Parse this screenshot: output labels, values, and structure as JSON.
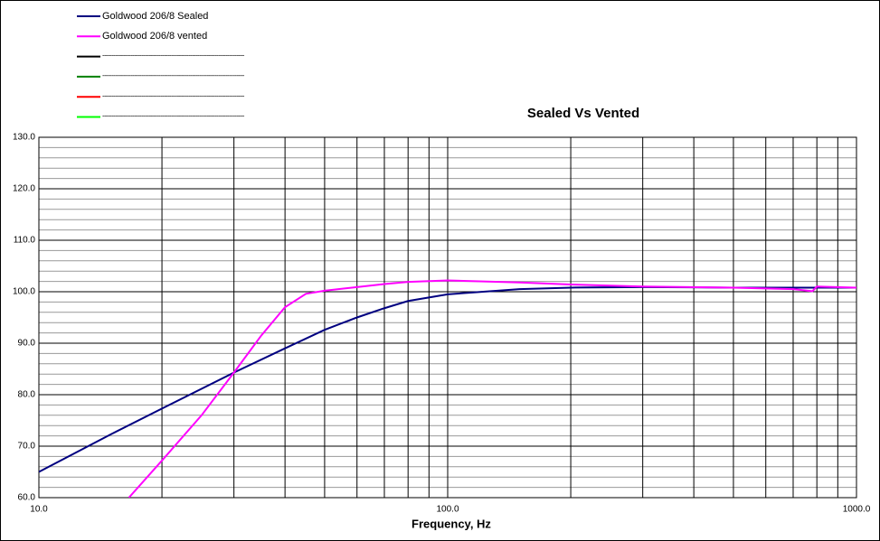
{
  "chart_data": {
    "type": "line",
    "title": "Sealed Vs Vented",
    "x_label": "Frequency, Hz",
    "x_scale": "log",
    "xlim": [
      10,
      1000
    ],
    "xticks": [
      {
        "value": 10,
        "label": "10.0"
      },
      {
        "value": 100,
        "label": "100.0"
      },
      {
        "value": 1000,
        "label": "1000.0"
      }
    ],
    "ylim": [
      60,
      130
    ],
    "yticks": [
      {
        "value": 60,
        "label": "60.0"
      },
      {
        "value": 70,
        "label": "70.0"
      },
      {
        "value": 80,
        "label": "80.0"
      },
      {
        "value": 90,
        "label": "90.0"
      },
      {
        "value": 100,
        "label": "100.0"
      },
      {
        "value": 110,
        "label": "110.0"
      },
      {
        "value": 120,
        "label": "120.0"
      },
      {
        "value": 130,
        "label": "130.0"
      }
    ],
    "grid": true,
    "minor_grid_step": 2,
    "legend": "top-left",
    "series": [
      {
        "name": "Goldwood 206/8 Sealed",
        "color": "#000080",
        "x": [
          10,
          15,
          20,
          30,
          40,
          50,
          60,
          70,
          80,
          100,
          150,
          200,
          300,
          500,
          800,
          1000
        ],
        "values": [
          65,
          72.3,
          77.3,
          84.3,
          89,
          92.6,
          95,
          96.8,
          98.2,
          99.5,
          100.5,
          100.8,
          100.9,
          100.8,
          100.8,
          100.8
        ]
      },
      {
        "name": "Goldwood 206/8 vented",
        "color": "#ff00ff",
        "x": [
          16.6,
          20,
          25,
          30,
          35,
          40,
          45,
          50,
          60,
          70,
          80,
          100,
          150,
          200,
          300,
          500,
          700,
          780,
          800,
          1000
        ],
        "values": [
          60,
          67.2,
          76,
          84.3,
          91.5,
          97,
          99.6,
          100.2,
          100.9,
          101.5,
          101.9,
          102.2,
          101.8,
          101.4,
          101,
          100.8,
          100.5,
          100.1,
          101,
          100.8
        ]
      },
      {
        "name": "----------------------------------------------------------------------------",
        "color": "#000000",
        "x": [],
        "values": []
      },
      {
        "name": "----------------------------------------------------------------------------",
        "color": "#008000",
        "x": [],
        "values": []
      },
      {
        "name": "----------------------------------------------------------------------------",
        "color": "#ff0000",
        "x": [],
        "values": []
      },
      {
        "name": "----------------------------------------------------------------------------",
        "color": "#00ff00",
        "x": [],
        "values": []
      }
    ]
  }
}
